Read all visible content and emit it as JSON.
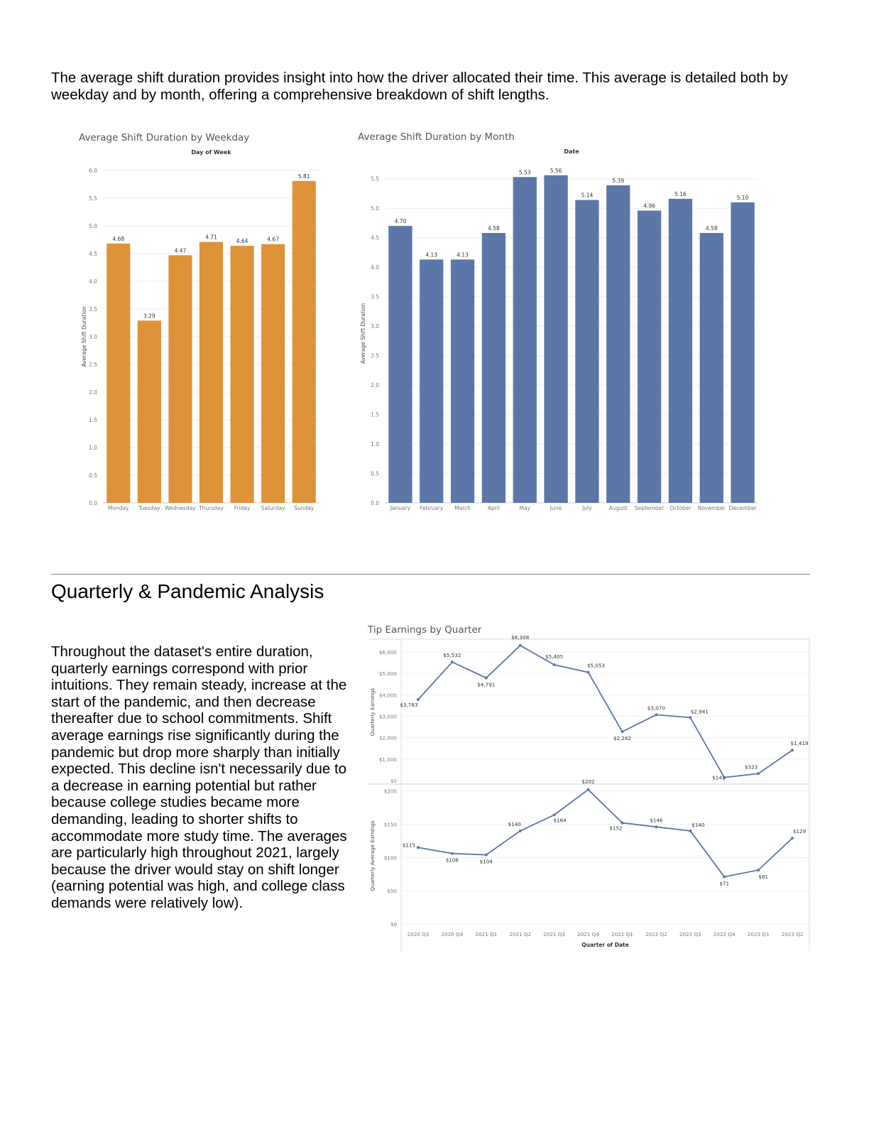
{
  "intro_text": "The average shift duration provides insight into how the driver allocated their time. This average is detailed both by weekday and by month, offering a comprehensive breakdown of shift lengths.",
  "section_heading": "Quarterly & Pandemic Analysis",
  "body_text": "Throughout the dataset's entire duration, quarterly earnings correspond with prior intuitions. They remain steady, increase at the start of the pandemic, and then decrease thereafter due to school commitments. Shift average earnings rise significantly during the pandemic but drop more sharply than initially expected. This decline isn't necessarily due to a decrease in earning potential but rather because college studies became more demanding, leading to shorter shifts to accommodate more study time. The averages are particularly high throughout 2021, largely because the driver would stay on shift longer (earning potential was high, and college class demands were relatively low).",
  "chart_data": [
    {
      "type": "bar",
      "title": "Average Shift Duration by Weekday",
      "header": "Day of Week",
      "xlabel": "",
      "ylabel": "Average Shift Duration",
      "categories": [
        "Monday",
        "Tuesday",
        "Wednesday",
        "Thursday",
        "Friday",
        "Saturday",
        "Sunday"
      ],
      "values": [
        4.68,
        3.29,
        4.47,
        4.71,
        4.64,
        4.67,
        5.81
      ],
      "value_labels": [
        "4.68",
        "3.29",
        "4.47",
        "4.71",
        "4.64",
        "4.67",
        "5.81"
      ],
      "ylim": [
        0,
        6
      ],
      "yticks": [
        "0.0",
        "0.5",
        "1.0",
        "1.5",
        "2.0",
        "2.5",
        "3.0",
        "3.5",
        "4.0",
        "4.5",
        "5.0",
        "5.5",
        "6.0"
      ],
      "color": "#de9338",
      "grid": true
    },
    {
      "type": "bar",
      "title": "Average Shift Duration by Month",
      "header": "Date",
      "xlabel": "",
      "ylabel": "Average Shift Duration",
      "categories": [
        "January",
        "February",
        "March",
        "April",
        "May",
        "June",
        "July",
        "August",
        "September",
        "October",
        "November",
        "December"
      ],
      "values": [
        4.7,
        4.13,
        4.13,
        4.58,
        5.53,
        5.56,
        5.14,
        5.39,
        4.96,
        5.16,
        4.58,
        5.1
      ],
      "value_labels": [
        "4.70",
        "4.13",
        "4.13",
        "4.58",
        "5.53",
        "5.56",
        "5.14",
        "5.39",
        "4.96",
        "5.16",
        "4.58",
        "5.10"
      ],
      "ylim": [
        0,
        5.75
      ],
      "yticks": [
        "0.0",
        "0.5",
        "1.0",
        "1.5",
        "2.0",
        "2.5",
        "3.0",
        "3.5",
        "4.0",
        "4.5",
        "5.0",
        "5.5"
      ],
      "color": "#5b77a7",
      "grid": true
    },
    {
      "type": "line",
      "title": "Tip Earnings by Quarter",
      "xlabel": "Quarter of Date",
      "categories": [
        "2020 Q3",
        "2020 Q4",
        "2021 Q1",
        "2021 Q2",
        "2021 Q3",
        "2021 Q4",
        "2022 Q1",
        "2022 Q2",
        "2022 Q3",
        "2022 Q4",
        "2023 Q1",
        "2023 Q2"
      ],
      "color": "#5b77a7",
      "grid": true,
      "panels": [
        {
          "ylabel": "Quarterly Earnings",
          "values": [
            3783,
            5532,
            4791,
            6308,
            5405,
            5053,
            2282,
            3070,
            2941,
            141,
            323,
            1419
          ],
          "value_labels": [
            "$3,783",
            "$5,532",
            "$4,791",
            "$6,308",
            "$5,405",
            "$5,053",
            "$2,282",
            "$3,070",
            "$2,941",
            "$141",
            "$323",
            "$1,419"
          ],
          "ylim": [
            0,
            6400
          ],
          "yticks": [
            "$0",
            "$1,000",
            "$2,000",
            "$3,000",
            "$4,000",
            "$5,000",
            "$6,000"
          ]
        },
        {
          "ylabel": "Quarterly Average Earnings",
          "values": [
            115,
            106,
            104,
            140,
            164,
            202,
            152,
            146,
            140,
            71,
            81,
            129
          ],
          "value_labels": [
            "$115",
            "$106",
            "$104",
            "$140",
            "$164",
            "$202",
            "$152",
            "$146",
            "$140",
            "$71",
            "$81",
            "$129"
          ],
          "ylim": [
            0,
            205
          ],
          "yticks": [
            "$0",
            "$50",
            "$100",
            "$150",
            "$200"
          ]
        }
      ]
    }
  ]
}
